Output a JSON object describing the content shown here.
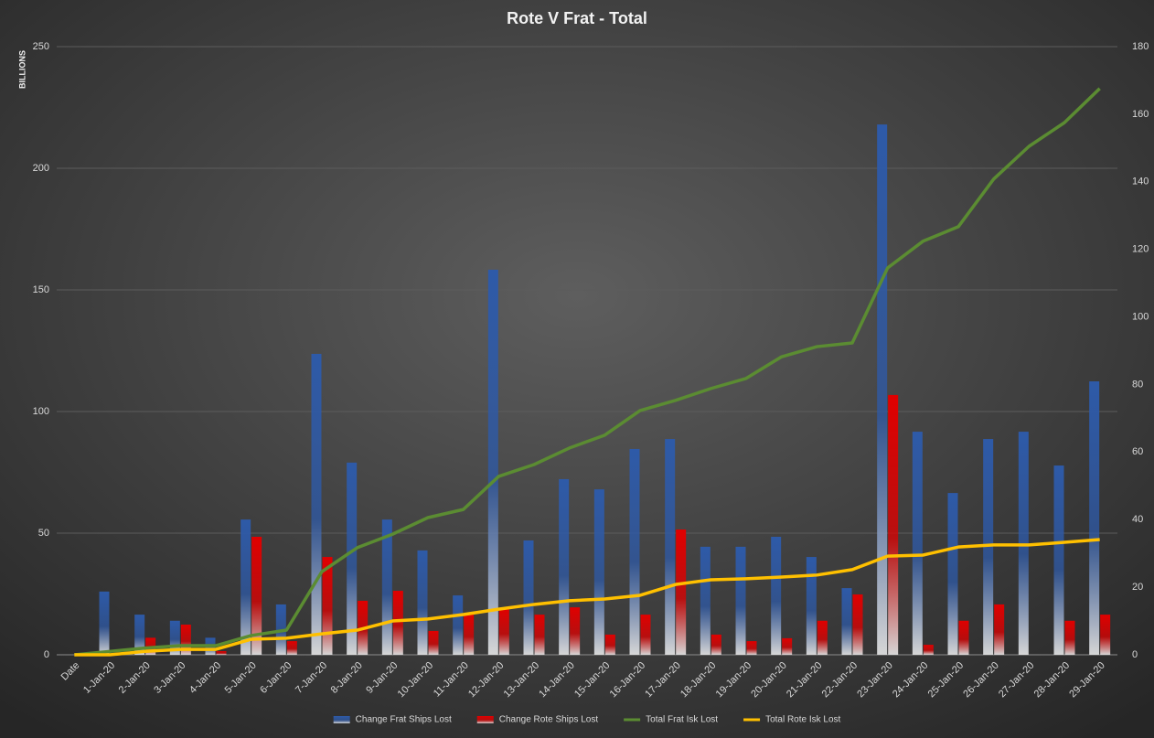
{
  "chart_data": {
    "type": "bar",
    "title": "Rote V Frat - Total",
    "y_label": "BILLIONS",
    "categories": [
      "Date",
      "1-Jan-20",
      "2-Jan-20",
      "3-Jan-20",
      "4-Jan-20",
      "5-Jan-20",
      "6-Jan-20",
      "7-Jan-20",
      "8-Jan-20",
      "9-Jan-20",
      "10-Jan-20",
      "11-Jan-20",
      "12-Jan-20",
      "13-Jan-20",
      "14-Jan-20",
      "15-Jan-20",
      "16-Jan-20",
      "17-Jan-20",
      "18-Jan-20",
      "19-Jan-20",
      "20-Jan-20",
      "21-Jan-20",
      "22-Jan-20",
      "23-Jan-20",
      "24-Jan-20",
      "25-Jan-20",
      "26-Jan-20",
      "27-Jan-20",
      "28-Jan-20",
      "29-Jan-20"
    ],
    "series": [
      {
        "name": "Change Frat Ships Lost",
        "type": "bar",
        "color": "#2e5aa8",
        "values": [
          null,
          26,
          16.5,
          14,
          7,
          55.6,
          20.7,
          123.7,
          79,
          55.6,
          42.9,
          24.4,
          158.3,
          47,
          72.2,
          68,
          84.6,
          88.7,
          44.4,
          44.4,
          48.5,
          40.2,
          27.4,
          218,
          91.7,
          66.5,
          88.7,
          91.7,
          77.8,
          112.4
        ]
      },
      {
        "name": "Change Rote Ships Lost",
        "type": "bar",
        "color": "#e00000",
        "values": [
          null,
          0,
          7,
          12.4,
          1.5,
          48.5,
          5.6,
          40.2,
          22.2,
          26.3,
          9.8,
          16.5,
          19,
          16.5,
          19.5,
          8.3,
          16.5,
          51.5,
          8.3,
          5.6,
          6.8,
          14,
          24.8,
          106.8,
          4.1,
          14,
          20.7,
          0,
          14,
          16.5
        ]
      },
      {
        "name": "Total Frat Isk Lost",
        "type": "line",
        "axis": "y2",
        "color": "#5b8c32",
        "values": [
          0,
          1,
          2,
          2.7,
          2.7,
          5.7,
          7.3,
          24.6,
          31.7,
          35.7,
          40.6,
          43,
          52.8,
          56.3,
          61.2,
          65,
          72.3,
          75.3,
          78.8,
          81.8,
          88.2,
          91.2,
          92.3,
          114.5,
          122.4,
          126.7,
          140.8,
          150.5,
          157.5,
          167.6
        ]
      },
      {
        "name": "Total Rote Isk Lost",
        "type": "line",
        "axis": "y2",
        "color": "#ffc000",
        "values": [
          0,
          0,
          1,
          1.6,
          1.6,
          4.6,
          4.9,
          6.2,
          7.3,
          10,
          10.6,
          11.9,
          13.5,
          14.9,
          16,
          16.5,
          17.6,
          20.8,
          22.2,
          22.5,
          23,
          23.6,
          25.2,
          29.2,
          29.5,
          31.9,
          32.5,
          32.5,
          33.3,
          34.1
        ]
      }
    ],
    "ylim": [
      0,
      250
    ],
    "yticks": [
      0,
      50,
      100,
      150,
      200,
      250
    ],
    "y2lim": [
      0,
      180
    ],
    "y2ticks": [
      0,
      20,
      40,
      60,
      80,
      100,
      120,
      140,
      160,
      180
    ],
    "grid": true,
    "legend": "bottom"
  }
}
